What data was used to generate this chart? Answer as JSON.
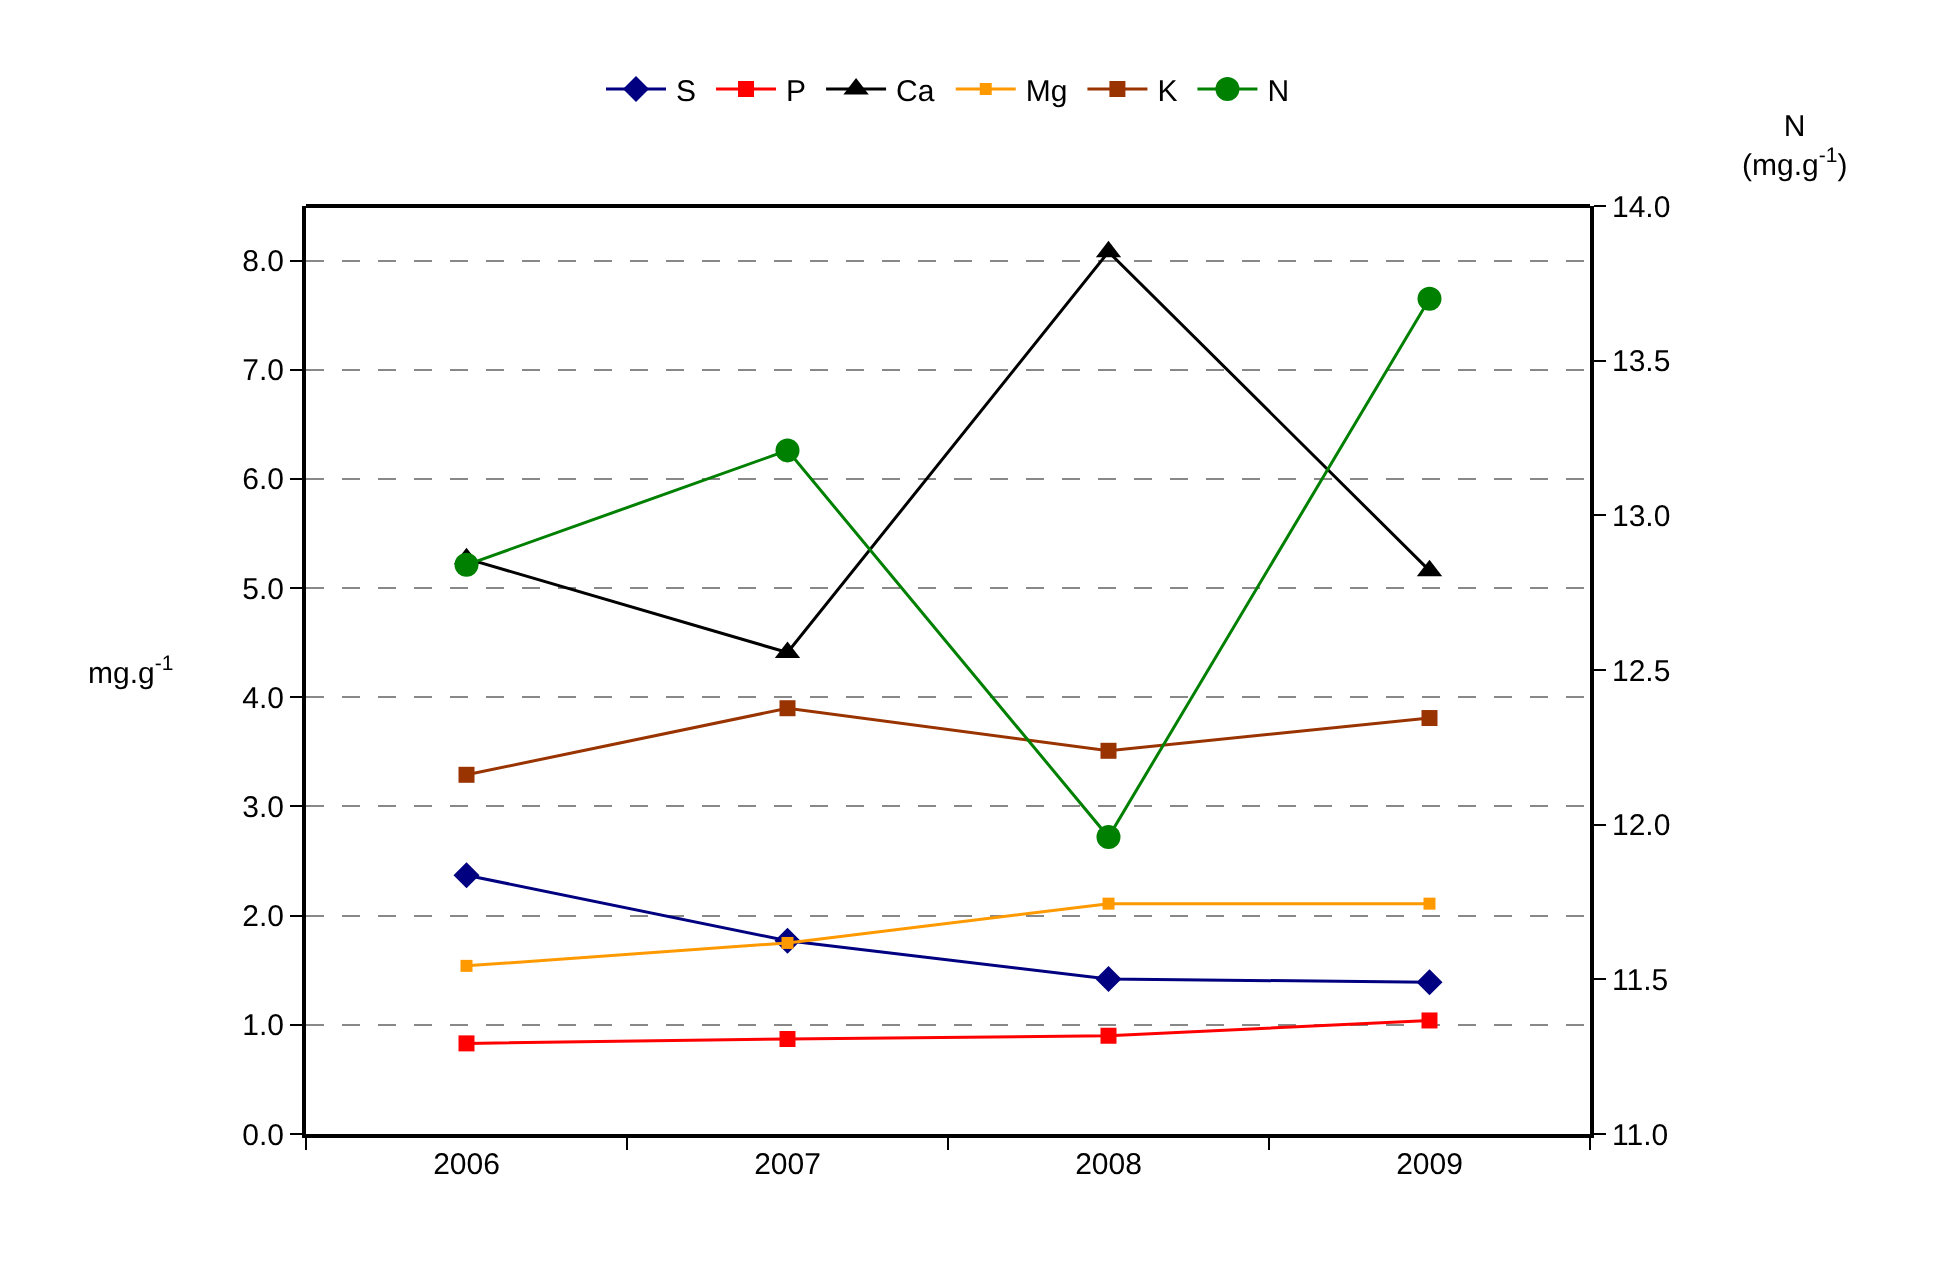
{
  "chart_data": {
    "type": "line",
    "categories": [
      "2006",
      "2007",
      "2008",
      "2009"
    ],
    "ylabel": "mg.g$^{-1}$",
    "y2label": "N\n(mg.g$^{-1}$)",
    "ylim": [
      0,
      8.5
    ],
    "yticks": [
      {
        "value": 0,
        "label": "0.0"
      },
      {
        "value": 1,
        "label": "1.0"
      },
      {
        "value": 2,
        "label": "2.0"
      },
      {
        "value": 3,
        "label": "3.0"
      },
      {
        "value": 4,
        "label": "4.0"
      },
      {
        "value": 5,
        "label": "5.0"
      },
      {
        "value": 6,
        "label": "6.0"
      },
      {
        "value": 7,
        "label": "7.0"
      },
      {
        "value": 8,
        "label": "8.0"
      }
    ],
    "y2lim": [
      11,
      14
    ],
    "y2ticks": [
      {
        "value": 11,
        "label": "11.0"
      },
      11.5,
      {
        "value": 12,
        "label": "12.0"
      },
      12.5,
      {
        "value": 13,
        "label": "13.0"
      },
      13.5,
      {
        "value": 14,
        "label": "14.0"
      }
    ],
    "grid": "y",
    "legend": "top",
    "series": [
      {
        "name": "S",
        "color": "#000080",
        "marker": "diamond",
        "values": [
          2.37,
          1.77,
          1.42,
          1.39
        ]
      },
      {
        "name": "P",
        "color": "#ff0000",
        "marker": "square",
        "values": [
          0.83,
          0.87,
          0.9,
          1.04
        ]
      },
      {
        "name": "Ca",
        "color": "#000000",
        "marker": "triangle",
        "values": [
          5.27,
          4.41,
          8.08,
          5.16
        ]
      },
      {
        "name": "Mg",
        "color": "#ff9900",
        "marker": "square",
        "values": [
          1.54,
          1.75,
          2.11,
          2.11
        ]
      },
      {
        "name": "K",
        "color": "#993300",
        "marker": "square",
        "values": [
          3.29,
          3.9,
          3.51,
          3.81
        ]
      },
      {
        "name": "N",
        "color": "#008000",
        "marker": "circle",
        "axis": "y2",
        "values": [
          12.84,
          13.21,
          11.96,
          13.7
        ]
      }
    ]
  }
}
